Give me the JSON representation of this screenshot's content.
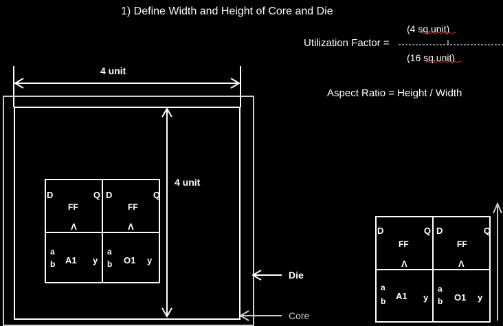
{
  "title": "1) Define Width and Height of Core and Die",
  "utilization": {
    "label": "Utilization Factor =",
    "numerator": "(4 sq.unit)",
    "denominator": "(16 sq.unit)"
  },
  "aspect_ratio": "Aspect Ratio = Height / Width",
  "dims": {
    "width_label": "4 unit",
    "height_label": "4 unit"
  },
  "labels": {
    "die": "Die",
    "core": "Core"
  },
  "cells": {
    "ff": {
      "d": "D",
      "q": "Q",
      "name": "FF",
      "clk": "Λ"
    },
    "and": {
      "a": "a",
      "b": "b",
      "name": "A1",
      "y": "y"
    },
    "or": {
      "a": "a",
      "b": "b",
      "name": "O1",
      "y": "y"
    }
  }
}
